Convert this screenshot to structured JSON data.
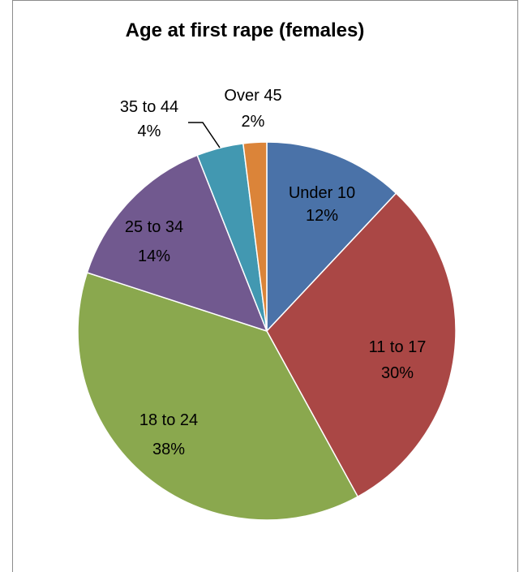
{
  "chart_data": {
    "type": "pie",
    "title": "Age at first rape (females)",
    "slices": [
      {
        "label": "Under 10",
        "value": 12,
        "value_label": "12%",
        "color": "#4a72a8"
      },
      {
        "label": "11 to 17",
        "value": 30,
        "value_label": "30%",
        "color": "#aa4745"
      },
      {
        "label": "18 to 24",
        "value": 38,
        "value_label": "38%",
        "color": "#8aa84e"
      },
      {
        "label": "25 to 34",
        "value": 14,
        "value_label": "14%",
        "color": "#71598f"
      },
      {
        "label": "35 to 44",
        "value": 4,
        "value_label": "4%",
        "color": "#4298b1"
      },
      {
        "label": "Over 45",
        "value": 2,
        "value_label": "2%",
        "color": "#db8439"
      }
    ]
  }
}
